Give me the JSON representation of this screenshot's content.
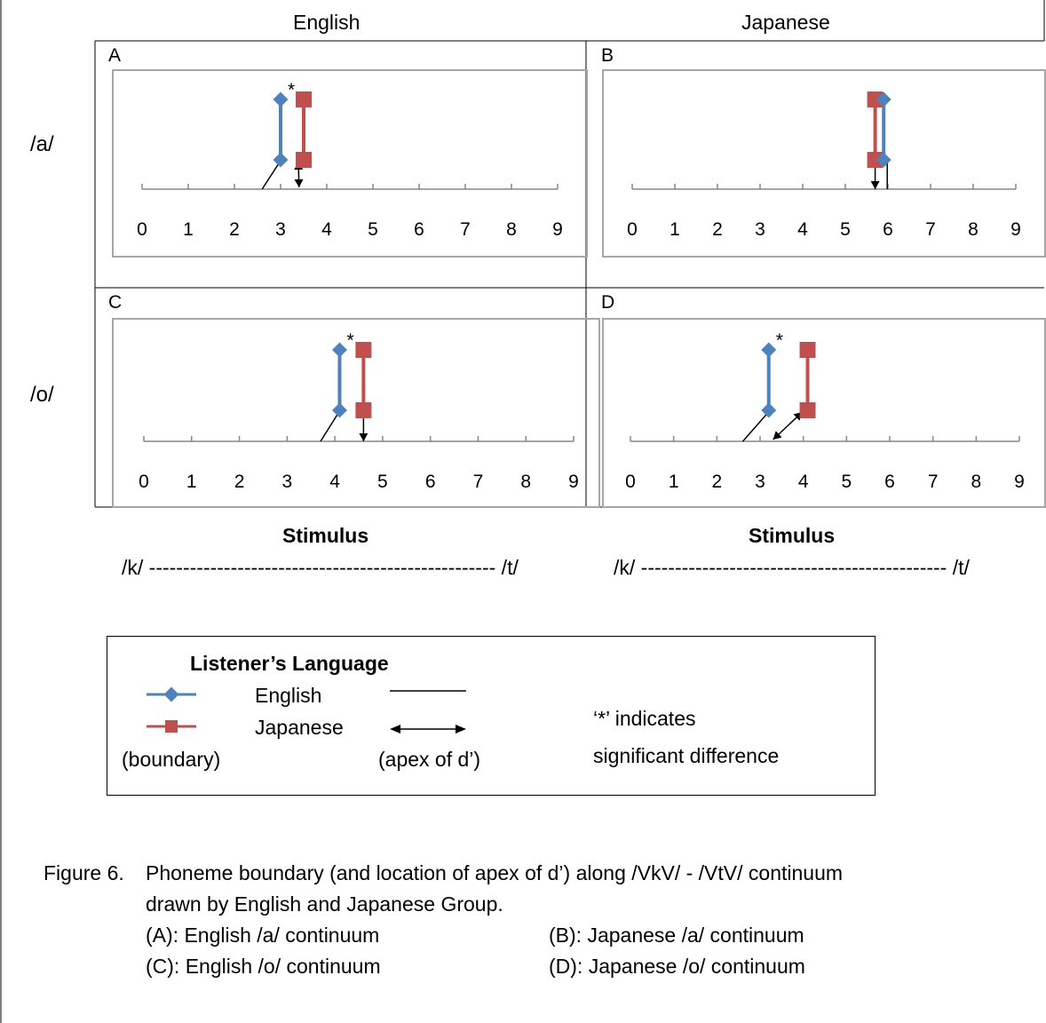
{
  "header": {
    "col_english": "English",
    "col_japanese": "Japanese"
  },
  "rows": {
    "row_a": "/a/",
    "row_o": "/o/"
  },
  "panel_letters": [
    "A",
    "B",
    "C",
    "D"
  ],
  "axis": {
    "ticks": [
      "0",
      "1",
      "2",
      "3",
      "4",
      "5",
      "6",
      "7",
      "8",
      "9"
    ],
    "xlim": [
      0,
      9
    ]
  },
  "colors": {
    "english": "#4F81BD",
    "japanese": "#C0504D",
    "axis": "#878787",
    "frame": "#a6a6a6"
  },
  "chart_data": [
    {
      "type": "line",
      "panel": "A",
      "series": [
        {
          "name": "English",
          "boundary": 3.0
        },
        {
          "name": "Japanese",
          "boundary": 3.5
        }
      ],
      "apex_dprime": {
        "English": 2.6,
        "Japanese": 3.4
      },
      "significant": true
    },
    {
      "type": "line",
      "panel": "B",
      "series": [
        {
          "name": "English",
          "boundary": 5.9
        },
        {
          "name": "Japanese",
          "boundary": 5.7
        }
      ],
      "apex_dprime": {
        "English": 5.9,
        "Japanese": 5.7
      },
      "significant": false
    },
    {
      "type": "line",
      "panel": "C",
      "series": [
        {
          "name": "English",
          "boundary": 4.1
        },
        {
          "name": "Japanese",
          "boundary": 4.6
        }
      ],
      "apex_dprime": {
        "English": 3.7,
        "Japanese": 4.6
      },
      "significant": true
    },
    {
      "type": "line",
      "panel": "D",
      "series": [
        {
          "name": "English",
          "boundary": 3.2
        },
        {
          "name": "Japanese",
          "boundary": 4.1
        }
      ],
      "apex_dprime": {
        "English": 2.6,
        "Japanese": 3.3
      },
      "significant": true
    }
  ],
  "star": "*",
  "stimulus": {
    "label": "Stimulus",
    "left_english": "/k/ --------------------------------------------------- /t/",
    "left_japanese": "/k/ --------------------------------------------- /t/"
  },
  "legend": {
    "title": "Listener’s Language",
    "english": "English",
    "japanese": "Japanese",
    "boundary": "(boundary)",
    "apex": "(apex of d’)",
    "note_line1": "‘*’  indicates",
    "note_line2": "significant difference"
  },
  "caption": {
    "label": "Figure 6.",
    "line1": "Phoneme boundary (and location of apex of d’) along /VkV/ - /VtV/ continuum",
    "line2": "drawn by English and Japanese Group.",
    "a": "(A): English /a/ continuum",
    "b": "(B): Japanese /a/ continuum",
    "c": "(C): English /o/ continuum",
    "d": "(D): Japanese /o/ continuum"
  }
}
